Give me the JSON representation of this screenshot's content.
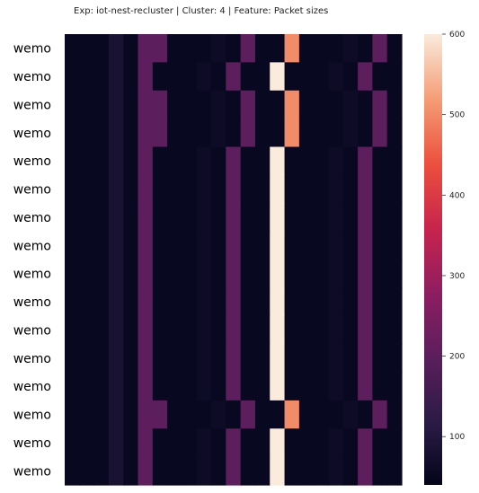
{
  "chart_data": {
    "type": "heatmap",
    "title": "Exp: iot-nest-recluster | Cluster: 4 | Feature: Packet sizes",
    "row_labels": [
      "wemo",
      "wemo",
      "wemo",
      "wemo",
      "wemo",
      "wemo",
      "wemo",
      "wemo",
      "wemo",
      "wemo",
      "wemo",
      "wemo",
      "wemo",
      "wemo",
      "wemo",
      "wemo"
    ],
    "colorbar": {
      "min": 40,
      "max": 600,
      "ticks": [
        100,
        200,
        300,
        400,
        500,
        600
      ]
    },
    "values": [
      [
        52,
        52,
        52,
        85,
        52,
        200,
        200,
        52,
        52,
        52,
        60,
        52,
        200,
        52,
        52,
        500,
        52,
        52,
        52,
        60,
        52,
        200,
        52
      ],
      [
        52,
        52,
        52,
        85,
        52,
        200,
        52,
        52,
        52,
        60,
        52,
        200,
        52,
        52,
        600,
        52,
        52,
        52,
        60,
        52,
        200,
        52,
        52
      ],
      [
        52,
        52,
        52,
        85,
        52,
        200,
        200,
        52,
        52,
        52,
        60,
        52,
        200,
        52,
        52,
        500,
        52,
        52,
        52,
        60,
        52,
        200,
        52
      ],
      [
        52,
        52,
        52,
        85,
        52,
        200,
        200,
        52,
        52,
        52,
        60,
        52,
        200,
        52,
        52,
        500,
        52,
        52,
        52,
        60,
        52,
        200,
        52
      ],
      [
        52,
        52,
        52,
        85,
        52,
        200,
        52,
        52,
        52,
        60,
        52,
        200,
        52,
        52,
        600,
        52,
        52,
        52,
        60,
        52,
        200,
        52,
        52
      ],
      [
        52,
        52,
        52,
        85,
        52,
        200,
        52,
        52,
        52,
        60,
        52,
        200,
        52,
        52,
        600,
        52,
        52,
        52,
        60,
        52,
        200,
        52,
        52
      ],
      [
        52,
        52,
        52,
        85,
        52,
        200,
        52,
        52,
        52,
        60,
        52,
        200,
        52,
        52,
        600,
        52,
        52,
        52,
        60,
        52,
        200,
        52,
        52
      ],
      [
        52,
        52,
        52,
        85,
        52,
        200,
        52,
        52,
        52,
        60,
        52,
        200,
        52,
        52,
        600,
        52,
        52,
        52,
        60,
        52,
        200,
        52,
        52
      ],
      [
        52,
        52,
        52,
        85,
        52,
        200,
        52,
        52,
        52,
        60,
        52,
        200,
        52,
        52,
        600,
        52,
        52,
        52,
        60,
        52,
        200,
        52,
        52
      ],
      [
        52,
        52,
        52,
        85,
        52,
        200,
        52,
        52,
        52,
        60,
        52,
        200,
        52,
        52,
        600,
        52,
        52,
        52,
        60,
        52,
        200,
        52,
        52
      ],
      [
        52,
        52,
        52,
        85,
        52,
        200,
        52,
        52,
        52,
        60,
        52,
        200,
        52,
        52,
        600,
        52,
        52,
        52,
        60,
        52,
        200,
        52,
        52
      ],
      [
        52,
        52,
        52,
        85,
        52,
        200,
        52,
        52,
        52,
        60,
        52,
        200,
        52,
        52,
        600,
        52,
        52,
        52,
        60,
        52,
        200,
        52,
        52
      ],
      [
        52,
        52,
        52,
        85,
        52,
        200,
        52,
        52,
        52,
        60,
        52,
        200,
        52,
        52,
        600,
        52,
        52,
        52,
        60,
        52,
        200,
        52,
        52
      ],
      [
        52,
        52,
        52,
        85,
        52,
        200,
        200,
        52,
        52,
        52,
        60,
        52,
        200,
        52,
        52,
        500,
        52,
        52,
        52,
        60,
        52,
        200,
        52
      ],
      [
        52,
        52,
        52,
        85,
        52,
        200,
        52,
        52,
        52,
        60,
        52,
        200,
        52,
        52,
        600,
        52,
        52,
        52,
        60,
        52,
        200,
        52,
        52
      ],
      [
        52,
        52,
        52,
        85,
        52,
        200,
        52,
        52,
        52,
        60,
        52,
        200,
        52,
        52,
        600,
        52,
        52,
        52,
        60,
        52,
        200,
        52,
        52
      ]
    ]
  }
}
